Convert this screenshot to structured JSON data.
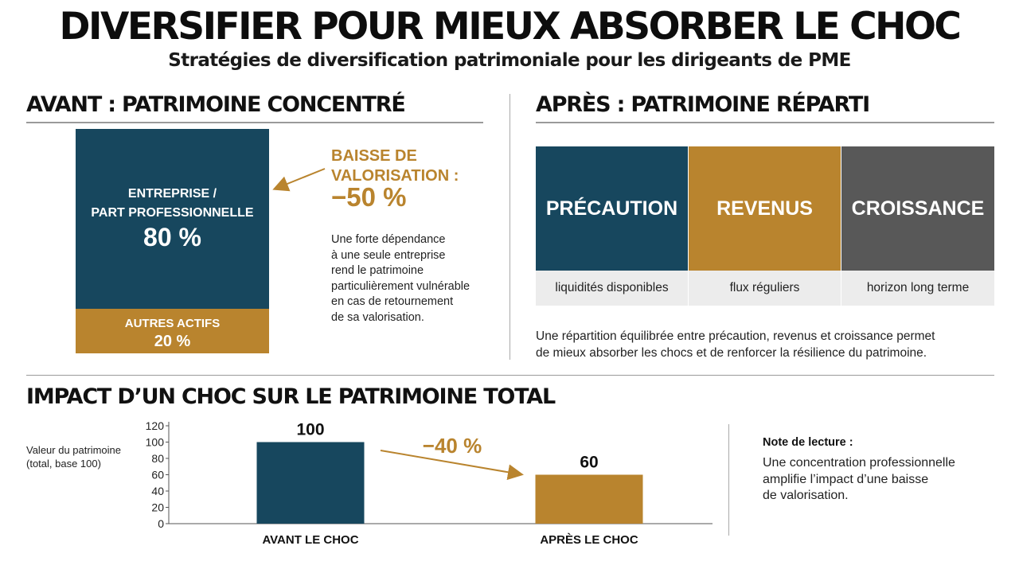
{
  "header": {
    "title": "DIVERSIFIER POUR MIEUX ABSORBER LE CHOC",
    "subtitle": "Stratégies de diversification patrimoniale pour les dirigeants de PME"
  },
  "before": {
    "title": "AVANT : PATRIMOINE CONCENTRÉ",
    "main_label_line1": "ENTREPRISE /",
    "main_label_line2": "PART PROFESSIONNELLE",
    "main_value": "80 %",
    "other_label": "AUTRES ACTIFS",
    "other_value": "20 %",
    "main_share": 80,
    "other_share": 20,
    "drop_label_line1": "BAISSE DE",
    "drop_label_line2": "VALORISATION :",
    "drop_value": "−50 %",
    "desc_lines": [
      "Une forte dépendance",
      "à une seule entreprise",
      "rend le patrimoine",
      "particulièrement vulnérable",
      "en cas de retournement",
      "de sa valorisation."
    ]
  },
  "after": {
    "title": "APRÈS : PATRIMOINE RÉPARTI",
    "categories": [
      {
        "label": "PRÉCAUTION",
        "sub": "liquidités disponibles"
      },
      {
        "label": "REVENUS",
        "sub": "flux réguliers"
      },
      {
        "label": "CROISSANCE",
        "sub": "horizon long terme"
      }
    ],
    "desc_lines": [
      "Une répartition équilibrée entre précaution, revenus et croissance permet",
      "de mieux absorber les chocs et de renforcer la résilience du patrimoine."
    ]
  },
  "impact": {
    "title": "IMPACT D’UN CHOC SUR LE PATRIMOINE TOTAL",
    "ylabel_line1": "Valeur du patrimoine",
    "ylabel_line2": "(total, base 100)",
    "note_title": "Note de lecture :",
    "note_lines": [
      "Une concentration professionnelle",
      "amplifie l’impact d’une baisse",
      "de valorisation."
    ]
  },
  "colors": {
    "teal": "#17475e",
    "gold": "#b9842e",
    "grey": "#585858"
  },
  "chart_data": {
    "type": "bar",
    "title": "",
    "xlabel": "",
    "ylabel": "Valeur du patrimoine (total, base 100)",
    "categories": [
      "AVANT LE CHOC",
      "APRÈS LE CHOC"
    ],
    "values": [
      100,
      60
    ],
    "value_labels": [
      "100",
      "60"
    ],
    "yticks": [
      0,
      20,
      40,
      60,
      80,
      100,
      120
    ],
    "ylim": [
      0,
      120
    ],
    "change_label": "−40 %",
    "grid": false,
    "legend": "none"
  }
}
